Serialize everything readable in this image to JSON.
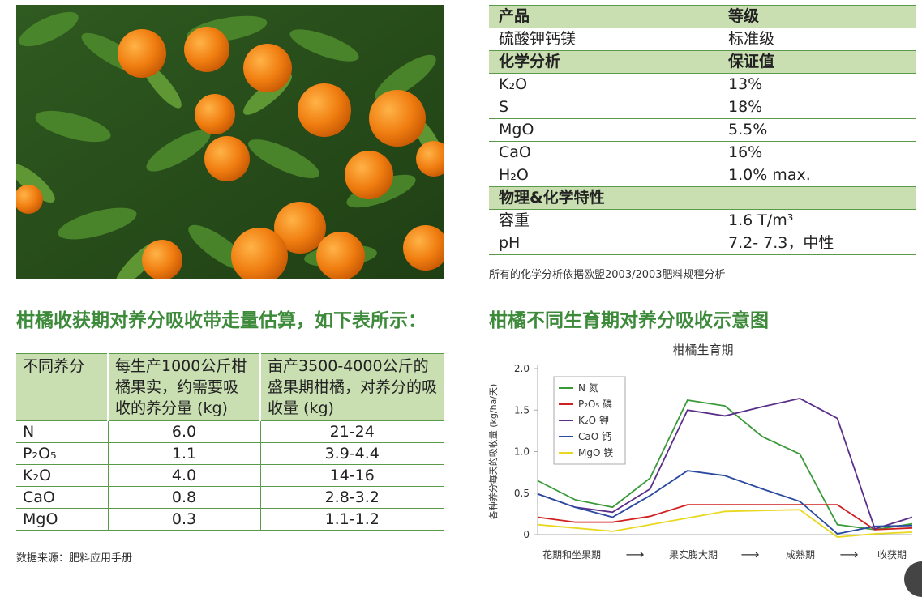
{
  "spec_table": {
    "rows": [
      {
        "type": "header",
        "c1": "产品",
        "c2": "等级"
      },
      {
        "type": "data",
        "c1": "硫酸钾钙镁",
        "c2": "标准级"
      },
      {
        "type": "header",
        "c1": "化学分析",
        "c2": "保证值"
      },
      {
        "type": "data",
        "c1": "K₂O",
        "c2": "13%"
      },
      {
        "type": "data",
        "c1": "S",
        "c2": "18%"
      },
      {
        "type": "data",
        "c1": "MgO",
        "c2": "5.5%"
      },
      {
        "type": "data",
        "c1": "CaO",
        "c2": "16%"
      },
      {
        "type": "data",
        "c1": "H₂O",
        "c2": "1.0% max."
      },
      {
        "type": "header",
        "c1": "物理&化学特性",
        "c2": ""
      },
      {
        "type": "data",
        "c1": "容重",
        "c2": "1.6 T/m³"
      },
      {
        "type": "data",
        "c1": "pH",
        "c2": "7.2- 7.3，中性"
      }
    ],
    "note": "所有的化学分析依据欧盟2003/2003肥料规程分析"
  },
  "left_heading": "柑橘收获期对养分吸收带走量估算，如下表所示：",
  "right_heading": "柑橘不同生育期对养分吸收示意图",
  "nutrient_table": {
    "headers": [
      "不同养分",
      "每生产1000公斤柑橘果实，约需要吸收的养分量 (kg)",
      "亩产3500-4000公斤的盛果期柑橘，对养分的吸收量 (kg)"
    ],
    "rows": [
      [
        "N",
        "6.0",
        "21-24"
      ],
      [
        "P₂O₅",
        "1.1",
        "3.9-4.4"
      ],
      [
        "K₂O",
        "4.0",
        "14-16"
      ],
      [
        "CaO",
        "0.8",
        "2.8-3.2"
      ],
      [
        "MgO",
        "0.3",
        "1.1-1.2"
      ]
    ],
    "note": "数据来源：肥料应用手册"
  },
  "photo": {
    "description_icon": "orange-tree-photo"
  },
  "chart_data": {
    "type": "line",
    "title": "柑橘生育期",
    "ylabel": "各种养分每天的吸收量 (kg/ha/天)",
    "ylim": [
      0,
      2.0
    ],
    "yticks": [
      "0",
      "0.5",
      "1.0",
      "1.5",
      "2.0"
    ],
    "stages": [
      "花期和坐果期",
      "果实膨大期",
      "成熟期",
      "收获期"
    ],
    "arrow": "⟶",
    "xlim": [
      0,
      10
    ],
    "x": [
      0,
      1,
      2,
      3,
      4,
      5,
      6,
      7,
      8,
      9,
      10
    ],
    "legend_position": "top-left",
    "series": [
      {
        "name": "N 氮",
        "color": "#3a9a3a",
        "values": [
          0.65,
          0.42,
          0.33,
          0.68,
          1.62,
          1.55,
          1.18,
          0.97,
          0.12,
          0.06,
          0.13
        ]
      },
      {
        "name": "P₂O₅ 磷",
        "color": "#d02020",
        "values": [
          0.21,
          0.15,
          0.15,
          0.22,
          0.36,
          0.36,
          0.36,
          0.36,
          0.36,
          0.06,
          0.08
        ]
      },
      {
        "name": "K₂O 钾",
        "color": "#5a2f8a",
        "values": [
          0.49,
          0.33,
          0.27,
          0.55,
          1.5,
          1.43,
          1.54,
          1.64,
          1.4,
          0.07,
          0.21
        ]
      },
      {
        "name": "CaO 钙",
        "color": "#2a4aa0",
        "values": [
          0.49,
          0.33,
          0.21,
          0.47,
          0.77,
          0.71,
          0.55,
          0.4,
          0.01,
          0.1,
          0.11
        ]
      },
      {
        "name": "MgO 镁",
        "color": "#e8d820",
        "values": [
          0.12,
          0.08,
          0.04,
          0.12,
          0.2,
          0.28,
          0.29,
          0.3,
          -0.03,
          0.01,
          0.03
        ]
      }
    ]
  }
}
